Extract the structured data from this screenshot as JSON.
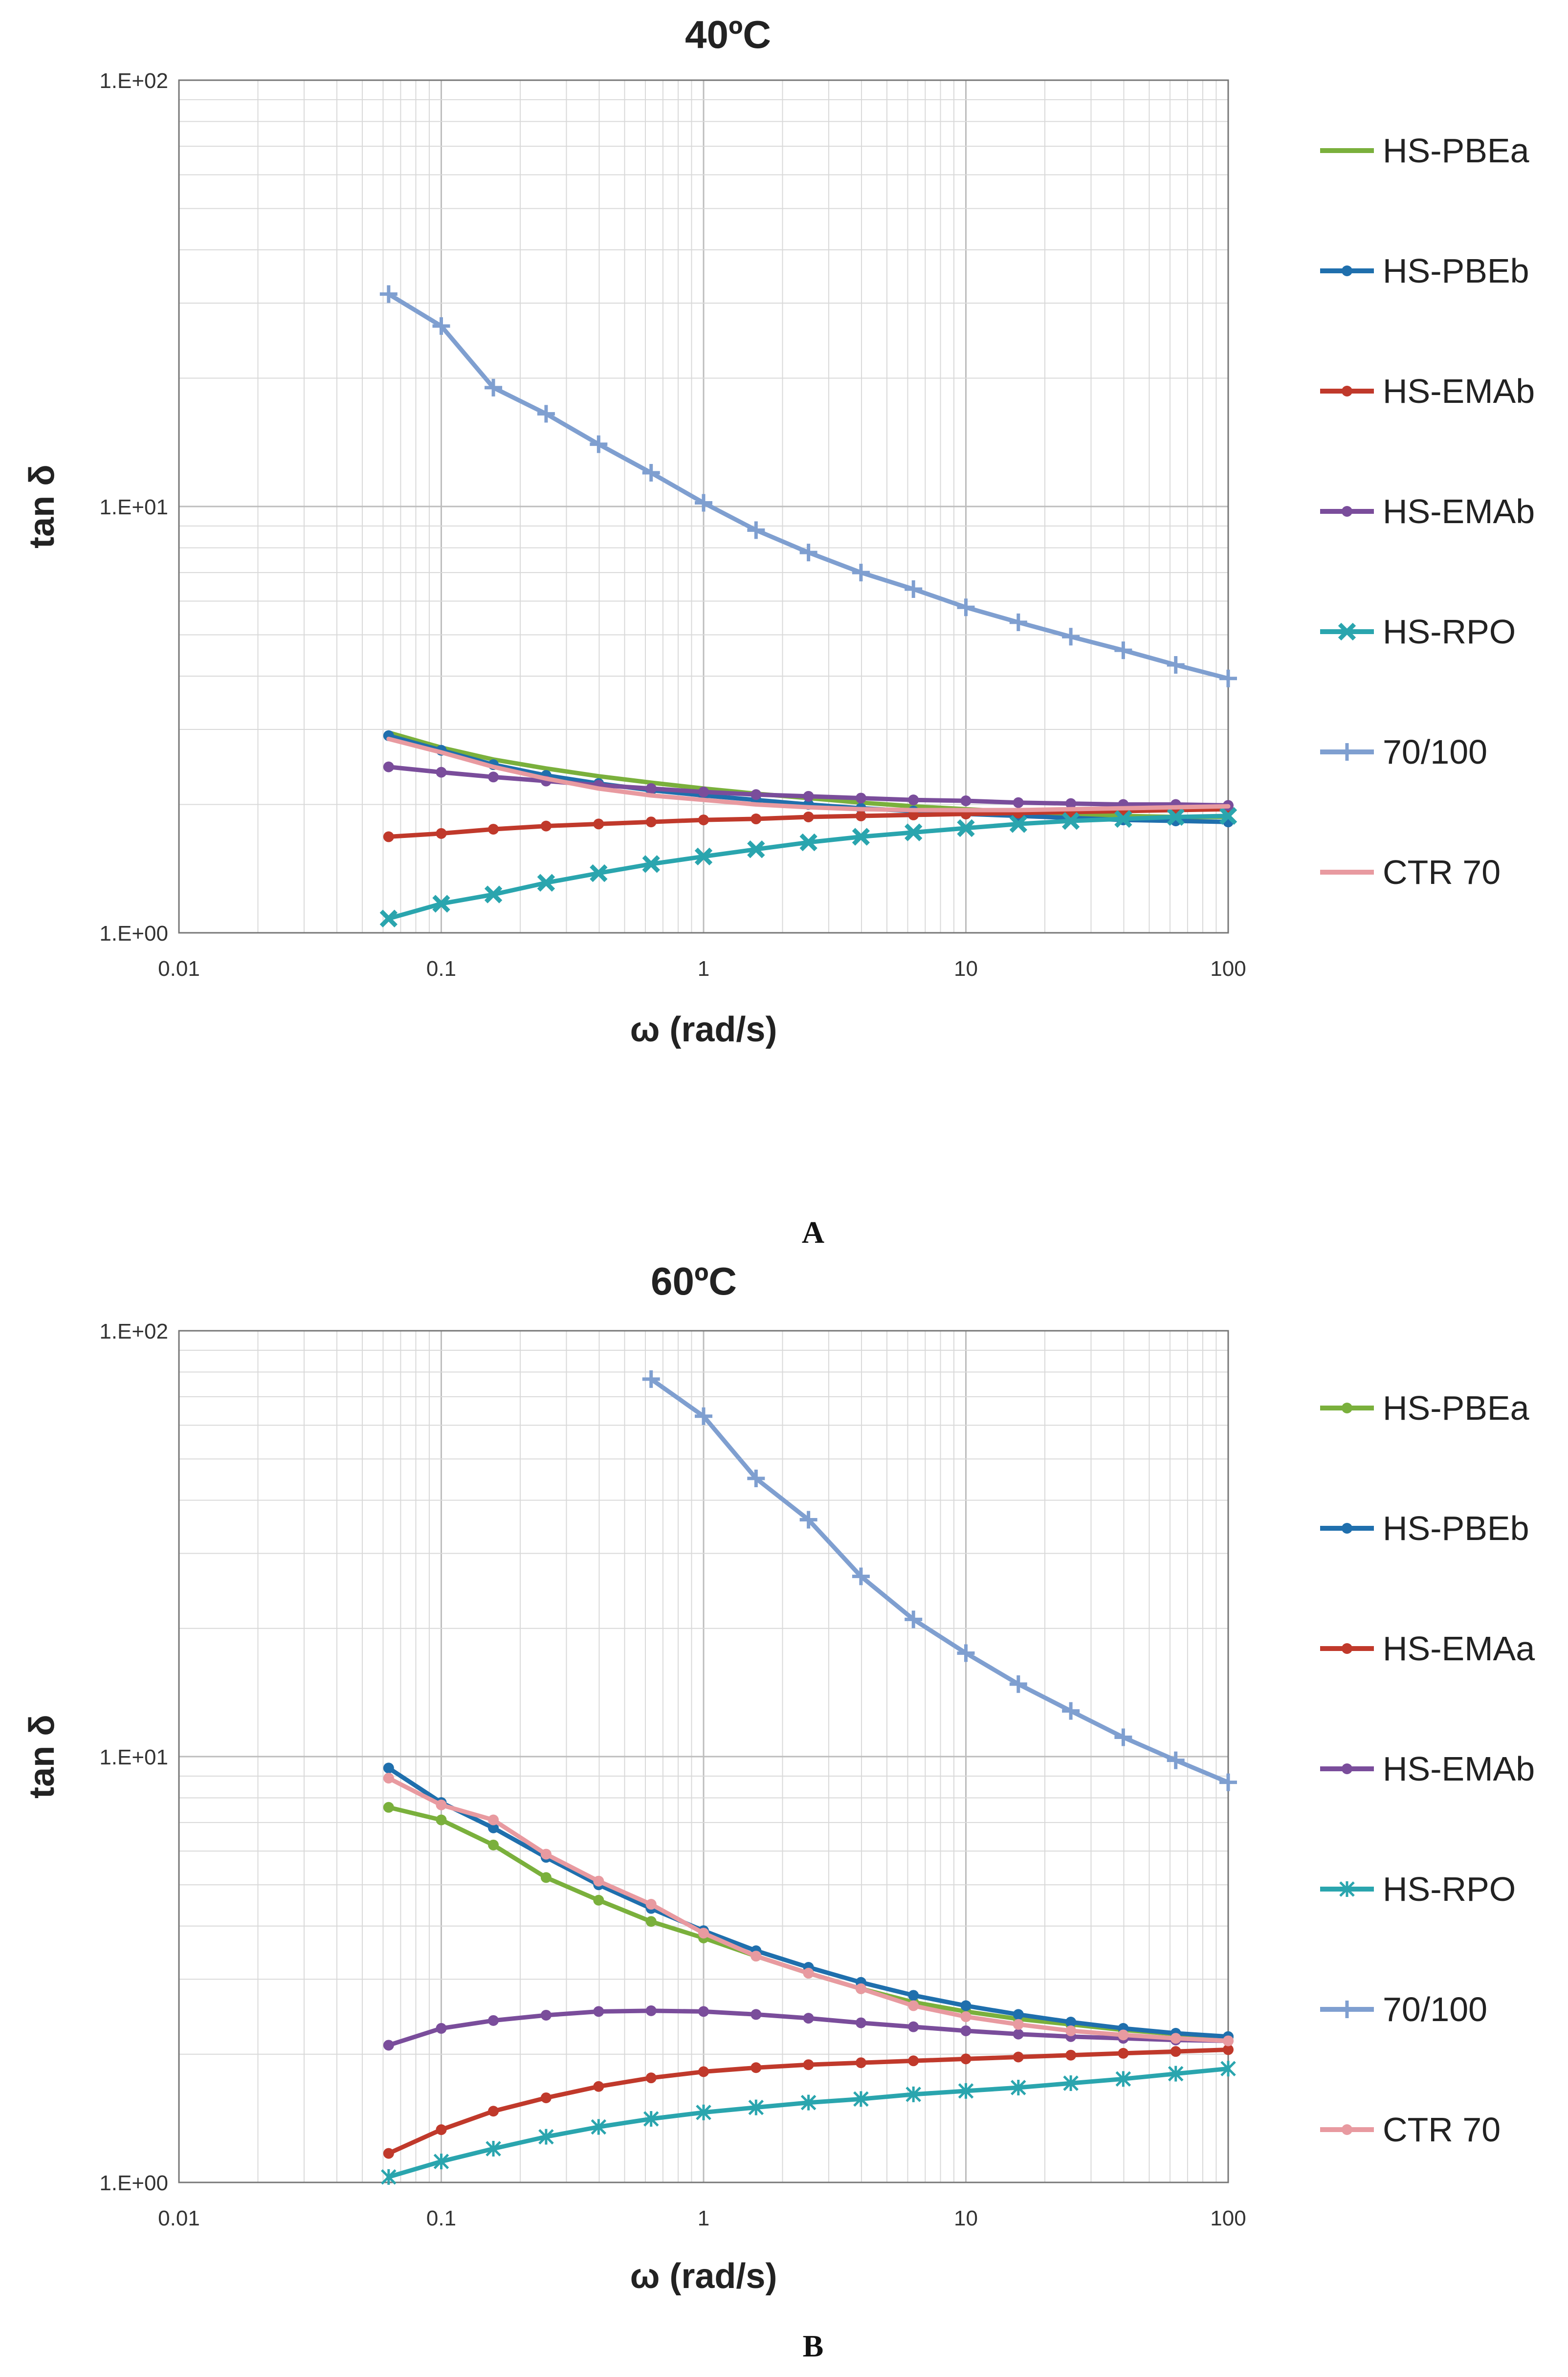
{
  "chart_data": [
    {
      "type": "line",
      "title": "40ºC",
      "panel_label": "A",
      "xlabel": "ω (rad/s)",
      "ylabel": "tan δ",
      "x_scale": "log",
      "y_scale": "log",
      "xlim": [
        0.01,
        100
      ],
      "ylim": [
        1,
        100
      ],
      "x_ticks": [
        "0.01",
        "0.1",
        "1",
        "10",
        "100"
      ],
      "y_ticks": [
        "1.E+00",
        "1.E+01",
        "1.E+02"
      ],
      "grid": true,
      "legend_position": "right",
      "x": [
        0.063,
        0.1,
        0.158,
        0.251,
        0.398,
        0.631,
        1.0,
        1.585,
        2.512,
        3.981,
        6.31,
        10.0,
        15.85,
        25.12,
        39.81,
        63.1,
        100.0
      ],
      "series": [
        {
          "name": "HS-PBEa",
          "color": "#7ab03c",
          "marker": "none",
          "values": [
            2.95,
            2.72,
            2.55,
            2.43,
            2.33,
            2.25,
            2.18,
            2.12,
            2.07,
            2.02,
            1.98,
            1.95,
            1.92,
            1.9,
            1.88,
            1.87,
            1.87
          ]
        },
        {
          "name": "HS-PBEb",
          "color": "#1f6fad",
          "marker": "dot",
          "values": [
            2.9,
            2.68,
            2.48,
            2.34,
            2.24,
            2.16,
            2.1,
            2.05,
            2.0,
            1.96,
            1.93,
            1.9,
            1.88,
            1.86,
            1.84,
            1.83,
            1.82
          ]
        },
        {
          "name": "HS-EMAb",
          "color": "#c0392b",
          "marker": "dot",
          "values": [
            1.68,
            1.71,
            1.75,
            1.78,
            1.8,
            1.82,
            1.84,
            1.85,
            1.87,
            1.88,
            1.89,
            1.9,
            1.91,
            1.92,
            1.93,
            1.94,
            1.95
          ]
        },
        {
          "name": "HS-EMAb",
          "color": "#7a4d9b",
          "marker": "dot",
          "values": [
            2.45,
            2.38,
            2.32,
            2.27,
            2.22,
            2.18,
            2.14,
            2.11,
            2.09,
            2.07,
            2.05,
            2.04,
            2.02,
            2.01,
            2.0,
            2.0,
            1.99
          ]
        },
        {
          "name": "HS-RPO",
          "color": "#2aa5ae",
          "marker": "x",
          "values": [
            1.08,
            1.17,
            1.23,
            1.31,
            1.38,
            1.45,
            1.51,
            1.57,
            1.63,
            1.68,
            1.72,
            1.76,
            1.8,
            1.83,
            1.85,
            1.87,
            1.88
          ]
        },
        {
          "name": "70/100",
          "color": "#7f9fd0",
          "marker": "plus",
          "values": [
            31.5,
            26.5,
            19.0,
            16.5,
            14.0,
            12.0,
            10.2,
            8.8,
            7.8,
            7.0,
            6.4,
            5.8,
            5.35,
            4.95,
            4.6,
            4.25,
            3.95
          ]
        },
        {
          "name": "CTR 70",
          "color": "#e89aa0",
          "marker": "none",
          "values": [
            2.85,
            2.65,
            2.45,
            2.3,
            2.18,
            2.1,
            2.05,
            2.0,
            1.97,
            1.95,
            1.94,
            1.94,
            1.94,
            1.95,
            1.96,
            1.97,
            1.98
          ]
        }
      ]
    },
    {
      "type": "line",
      "title": "60ºC",
      "panel_label": "B",
      "xlabel": "ω (rad/s)",
      "ylabel": "tan δ",
      "x_scale": "log",
      "y_scale": "log",
      "xlim": [
        0.01,
        100
      ],
      "ylim": [
        1,
        100
      ],
      "x_ticks": [
        "0.01",
        "0.1",
        "1",
        "10",
        "100"
      ],
      "y_ticks": [
        "1.E+00",
        "1.E+01",
        "1.E+02"
      ],
      "grid": true,
      "legend_position": "right",
      "x": [
        0.063,
        0.1,
        0.158,
        0.251,
        0.398,
        0.631,
        1.0,
        1.585,
        2.512,
        3.981,
        6.31,
        10.0,
        15.85,
        25.12,
        39.81,
        63.1,
        100.0
      ],
      "series": [
        {
          "name": "HS-PBEa",
          "color": "#7ab03c",
          "marker": "dot",
          "values": [
            7.6,
            7.1,
            6.2,
            5.2,
            4.6,
            4.1,
            3.75,
            3.4,
            3.1,
            2.85,
            2.65,
            2.52,
            2.42,
            2.35,
            2.28,
            2.23,
            2.2
          ]
        },
        {
          "name": "HS-PBEb",
          "color": "#1f6fad",
          "marker": "dot",
          "values": [
            9.4,
            7.8,
            6.8,
            5.8,
            5.0,
            4.4,
            3.9,
            3.5,
            3.2,
            2.95,
            2.75,
            2.6,
            2.48,
            2.38,
            2.3,
            2.24,
            2.2
          ]
        },
        {
          "name": "HS-EMAa",
          "color": "#c0392b",
          "marker": "dot",
          "values": [
            1.17,
            1.33,
            1.47,
            1.58,
            1.68,
            1.76,
            1.82,
            1.86,
            1.89,
            1.91,
            1.93,
            1.95,
            1.97,
            1.99,
            2.01,
            2.03,
            2.05
          ]
        },
        {
          "name": "HS-EMAb",
          "color": "#7a4d9b",
          "marker": "dot",
          "values": [
            2.1,
            2.3,
            2.4,
            2.47,
            2.52,
            2.53,
            2.52,
            2.48,
            2.43,
            2.37,
            2.32,
            2.27,
            2.23,
            2.2,
            2.18,
            2.16,
            2.15
          ]
        },
        {
          "name": "HS-RPO",
          "color": "#2aa5ae",
          "marker": "star",
          "values": [
            1.03,
            1.12,
            1.2,
            1.28,
            1.35,
            1.41,
            1.46,
            1.5,
            1.54,
            1.57,
            1.61,
            1.64,
            1.67,
            1.71,
            1.75,
            1.8,
            1.85
          ]
        },
        {
          "name": "70/100",
          "color": "#7f9fd0",
          "marker": "plus",
          "x_start_index": 5,
          "values": [
            null,
            null,
            null,
            null,
            null,
            77.0,
            63.0,
            45.0,
            36.0,
            26.5,
            21.0,
            17.5,
            14.8,
            12.8,
            11.1,
            9.8,
            8.7
          ]
        },
        {
          "name": "CTR 70",
          "color": "#e89aa0",
          "marker": "dot",
          "values": [
            8.9,
            7.7,
            7.1,
            5.9,
            5.1,
            4.5,
            3.85,
            3.4,
            3.1,
            2.85,
            2.6,
            2.45,
            2.35,
            2.27,
            2.22,
            2.18,
            2.15
          ]
        }
      ]
    }
  ]
}
